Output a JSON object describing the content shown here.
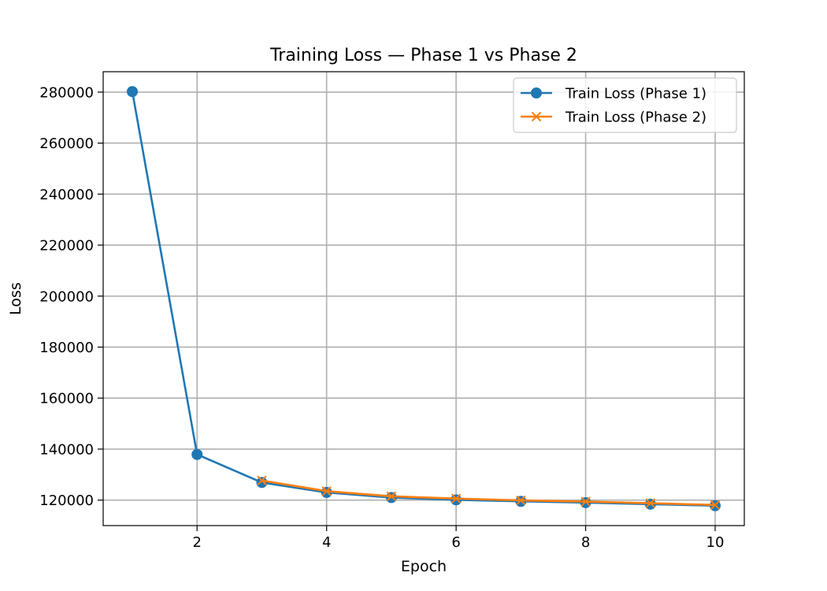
{
  "chart_data": {
    "type": "line",
    "title": "Training Loss — Phase 1 vs Phase 2",
    "xlabel": "Epoch",
    "ylabel": "Loss",
    "xlim": [
      0.55,
      10.45
    ],
    "ylim": [
      110000,
      288000
    ],
    "xticks": [
      2,
      4,
      6,
      8,
      10
    ],
    "yticks": [
      120000,
      140000,
      160000,
      180000,
      200000,
      220000,
      240000,
      260000,
      280000
    ],
    "grid": true,
    "legend_position": "top-right",
    "series": [
      {
        "name": "Train Loss (Phase 1)",
        "color": "#1f77b4",
        "marker": "circle",
        "x": [
          1,
          2,
          3,
          4,
          5,
          6,
          7,
          8,
          9,
          10
        ],
        "y": [
          280200,
          137900,
          126900,
          123000,
          121000,
          120100,
          119500,
          119000,
          118400,
          117800
        ]
      },
      {
        "name": "Train Loss (Phase 2)",
        "color": "#ff7f0e",
        "marker": "x",
        "x": [
          3,
          4,
          5,
          6,
          7,
          8,
          9,
          10
        ],
        "y": [
          127700,
          123500,
          121500,
          120600,
          119900,
          119400,
          118800,
          118100
        ]
      }
    ]
  }
}
